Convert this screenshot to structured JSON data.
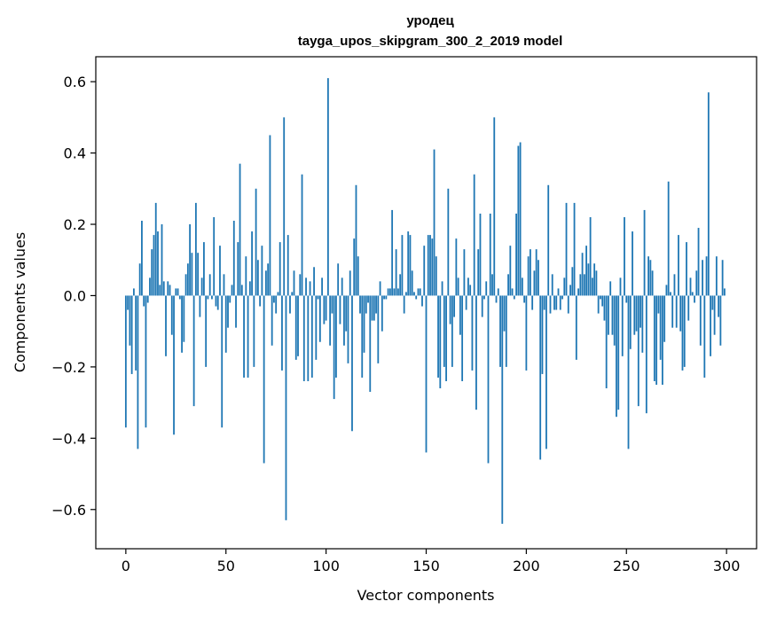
{
  "chart_data": {
    "type": "bar",
    "title": "уродец",
    "subtitle": "tayga_upos_skipgram_300_2_2019 model",
    "xlabel": "Vector components",
    "ylabel": "Components values",
    "xlim": [
      -15,
      315
    ],
    "ylim": [
      -0.71,
      0.67
    ],
    "xticks": [
      0,
      50,
      100,
      150,
      200,
      250,
      300
    ],
    "yticks": [
      -0.6,
      -0.4,
      -0.2,
      0.0,
      0.2,
      0.4,
      0.6
    ],
    "xtick_labels": [
      "0",
      "50",
      "100",
      "150",
      "200",
      "250",
      "300"
    ],
    "ytick_labels": [
      "−0.6",
      "−0.4",
      "−0.2",
      "0.0",
      "0.2",
      "0.4",
      "0.6"
    ],
    "bar_color": "#1f77b4",
    "grid": false,
    "values": [
      -0.37,
      -0.04,
      -0.14,
      -0.22,
      0.02,
      -0.21,
      -0.43,
      0.09,
      0.21,
      -0.03,
      -0.37,
      -0.02,
      0.05,
      0.13,
      0.17,
      0.26,
      0.18,
      0.03,
      0.2,
      0.04,
      -0.17,
      0.04,
      0.03,
      -0.11,
      -0.39,
      0.02,
      0.02,
      -0.01,
      -0.16,
      -0.13,
      0.06,
      0.09,
      0.2,
      0.12,
      -0.31,
      0.26,
      0.12,
      -0.06,
      0.05,
      0.15,
      -0.2,
      -0.01,
      0.06,
      -0.01,
      0.22,
      -0.03,
      -0.04,
      0.14,
      -0.37,
      0.06,
      -0.16,
      -0.09,
      -0.02,
      0.03,
      0.21,
      -0.09,
      0.15,
      0.37,
      0.03,
      -0.23,
      0.11,
      -0.23,
      0.04,
      0.18,
      -0.2,
      0.3,
      0.1,
      -0.03,
      0.14,
      -0.47,
      0.07,
      0.09,
      0.45,
      -0.14,
      -0.02,
      -0.05,
      0.01,
      0.15,
      -0.21,
      0.5,
      -0.63,
      0.17,
      -0.05,
      0.01,
      0.07,
      -0.18,
      -0.17,
      0.06,
      0.34,
      -0.24,
      0.05,
      -0.24,
      0.04,
      -0.23,
      0.08,
      -0.18,
      -0.01,
      -0.13,
      0.05,
      -0.08,
      -0.07,
      0.61,
      -0.14,
      -0.05,
      -0.29,
      -0.23,
      0.09,
      -0.08,
      0.05,
      -0.14,
      -0.1,
      -0.19,
      0.07,
      -0.38,
      0.16,
      0.31,
      0.11,
      -0.05,
      -0.23,
      -0.16,
      -0.05,
      -0.02,
      -0.27,
      -0.07,
      -0.07,
      -0.05,
      -0.19,
      0.04,
      -0.1,
      -0.01,
      -0.01,
      0.02,
      0.02,
      0.24,
      0.02,
      0.13,
      0.02,
      0.06,
      0.17,
      -0.05,
      0.01,
      0.18,
      0.17,
      0.07,
      0.01,
      -0.01,
      0.02,
      0.02,
      -0.03,
      0.14,
      -0.44,
      0.17,
      0.17,
      0.16,
      0.41,
      0.11,
      -0.23,
      -0.26,
      0.04,
      -0.2,
      -0.24,
      0.3,
      -0.08,
      -0.2,
      -0.06,
      0.16,
      0.05,
      -0.11,
      -0.24,
      0.13,
      -0.04,
      0.05,
      0.03,
      -0.21,
      0.34,
      -0.32,
      0.13,
      0.23,
      -0.06,
      -0.01,
      0.04,
      -0.47,
      0.23,
      0.06,
      0.5,
      -0.02,
      0.02,
      -0.2,
      -0.64,
      -0.1,
      -0.2,
      0.06,
      0.14,
      0.02,
      -0.01,
      0.23,
      0.42,
      0.43,
      0.05,
      -0.02,
      -0.21,
      0.11,
      0.13,
      -0.04,
      0.07,
      0.13,
      0.1,
      -0.46,
      -0.22,
      -0.04,
      -0.43,
      0.31,
      -0.05,
      0.06,
      -0.04,
      -0.04,
      0.02,
      -0.04,
      -0.01,
      0.05,
      0.26,
      -0.05,
      0.03,
      0.08,
      0.26,
      -0.18,
      0.02,
      0.06,
      0.12,
      0.06,
      0.14,
      0.09,
      0.22,
      0.05,
      0.09,
      0.07,
      -0.05,
      -0.01,
      -0.03,
      -0.07,
      -0.26,
      -0.11,
      0.04,
      -0.11,
      -0.14,
      -0.34,
      -0.32,
      0.05,
      -0.17,
      0.22,
      -0.02,
      -0.43,
      -0.15,
      0.18,
      -0.11,
      -0.1,
      -0.31,
      -0.09,
      -0.16,
      0.24,
      -0.33,
      0.11,
      0.1,
      0.07,
      -0.24,
      -0.25,
      -0.05,
      -0.18,
      -0.25,
      -0.13,
      0.03,
      0.32,
      0.01,
      -0.09,
      0.06,
      -0.09,
      0.17,
      -0.1,
      -0.21,
      -0.2,
      0.15,
      -0.07,
      0.05,
      0.01,
      -0.02,
      0.07,
      0.19,
      -0.14,
      0.1,
      -0.23,
      0.11,
      0.57,
      -0.17,
      -0.04,
      -0.11,
      0.11,
      -0.06,
      -0.14,
      0.1,
      0.02
    ]
  }
}
